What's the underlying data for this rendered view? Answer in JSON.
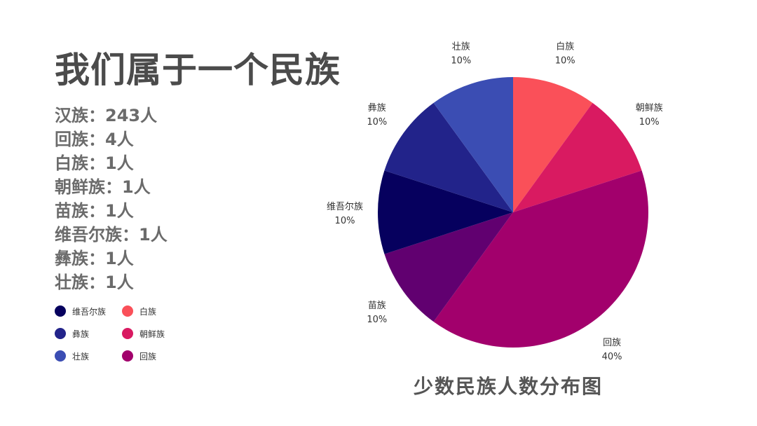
{
  "header": {
    "title": "我们属于一个民族"
  },
  "stats": [
    "汉族：243人",
    "回族：4人",
    "白族：1人",
    "朝鲜族：1人",
    "苗族：1人",
    "维吾尔族：1人",
    "彝族：1人",
    "壮族：1人"
  ],
  "legend": [
    {
      "label": "维吾尔族",
      "color": "#06005e"
    },
    {
      "label": "白族",
      "color": "#fa5059"
    },
    {
      "label": "彝族",
      "color": "#22238a"
    },
    {
      "label": "朝鲜族",
      "color": "#d91a61"
    },
    {
      "label": "壮族",
      "color": "#3b4db3"
    },
    {
      "label": "回族",
      "color": "#a2006c"
    }
  ],
  "chart_data": {
    "type": "pie",
    "title": "少数民族人数分布图",
    "legend_position": "bottom-left",
    "slices": [
      {
        "name": "白族",
        "value": 10,
        "label": "10%",
        "color": "#fa5059"
      },
      {
        "name": "朝鲜族",
        "value": 10,
        "label": "10%",
        "color": "#d91a61"
      },
      {
        "name": "回族",
        "value": 40,
        "label": "40%",
        "color": "#a2006c"
      },
      {
        "name": "苗族",
        "value": 10,
        "label": "10%",
        "color": "#610070"
      },
      {
        "name": "维吾尔族",
        "value": 10,
        "label": "10%",
        "color": "#06005e"
      },
      {
        "name": "彝族",
        "value": 10,
        "label": "10%",
        "color": "#22238a"
      },
      {
        "name": "壮族",
        "value": 10,
        "label": "10%",
        "color": "#3b4db3"
      }
    ]
  }
}
